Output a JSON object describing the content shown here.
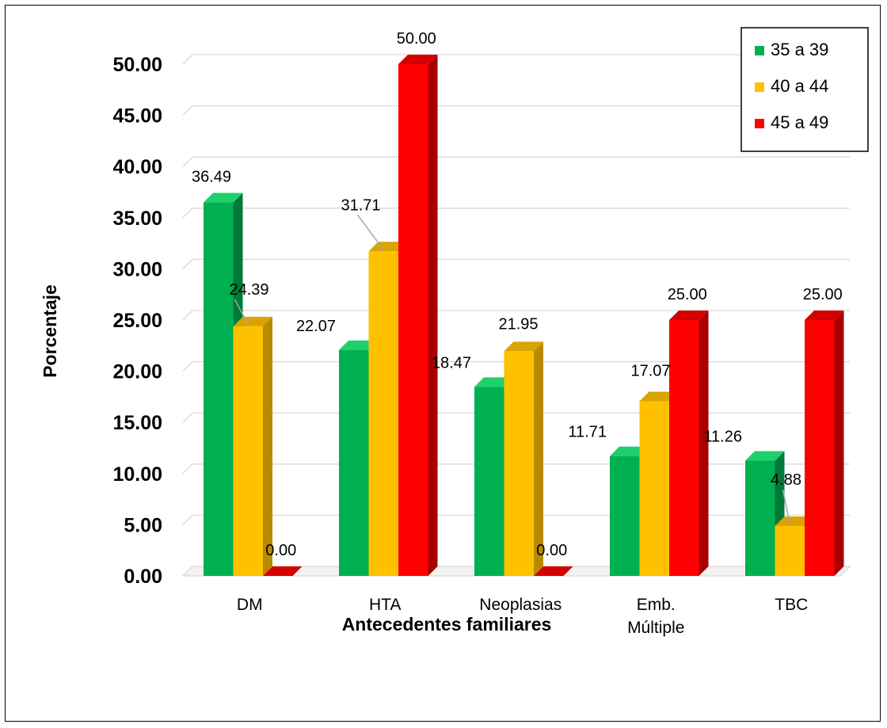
{
  "chart_data": {
    "type": "bar",
    "title": "",
    "xlabel": "Antecedentes familiares",
    "ylabel": "Porcentaje",
    "ylim": [
      0,
      50
    ],
    "ytick_step": 5,
    "ytick_labels": [
      "0.00",
      "5.00",
      "10.00",
      "15.00",
      "20.00",
      "25.00",
      "30.00",
      "35.00",
      "40.00",
      "45.00",
      "50.00"
    ],
    "categories": [
      [
        "DM"
      ],
      [
        "HTA"
      ],
      [
        "Neoplasias"
      ],
      [
        "Emb.",
        "Múltiple"
      ],
      [
        "TBC"
      ]
    ],
    "series": [
      {
        "name": "35 a 39",
        "color": "#00b050",
        "side_color": "#007a38",
        "top_color": "#1fd06a",
        "values": [
          36.49,
          22.07,
          18.47,
          11.71,
          11.26
        ],
        "labels": [
          "36.49",
          "22.07",
          "18.47",
          "11.71",
          "11.26"
        ]
      },
      {
        "name": "40 a 44",
        "color": "#ffc000",
        "side_color": "#b88a00",
        "top_color": "#d9a300",
        "values": [
          24.39,
          31.71,
          21.95,
          17.07,
          4.88
        ],
        "labels": [
          "24.39",
          "31.71",
          "21.95",
          "17.07",
          "4.88"
        ]
      },
      {
        "name": "45 a 49",
        "color": "#ff0000",
        "side_color": "#a80000",
        "top_color": "#d40000",
        "values": [
          0.0,
          50.0,
          0.0,
          25.0,
          25.0
        ],
        "labels": [
          "0.00",
          "50.00",
          "0.00",
          "25.00",
          "25.00"
        ]
      }
    ],
    "grid": true,
    "legend_position": "top-right"
  }
}
